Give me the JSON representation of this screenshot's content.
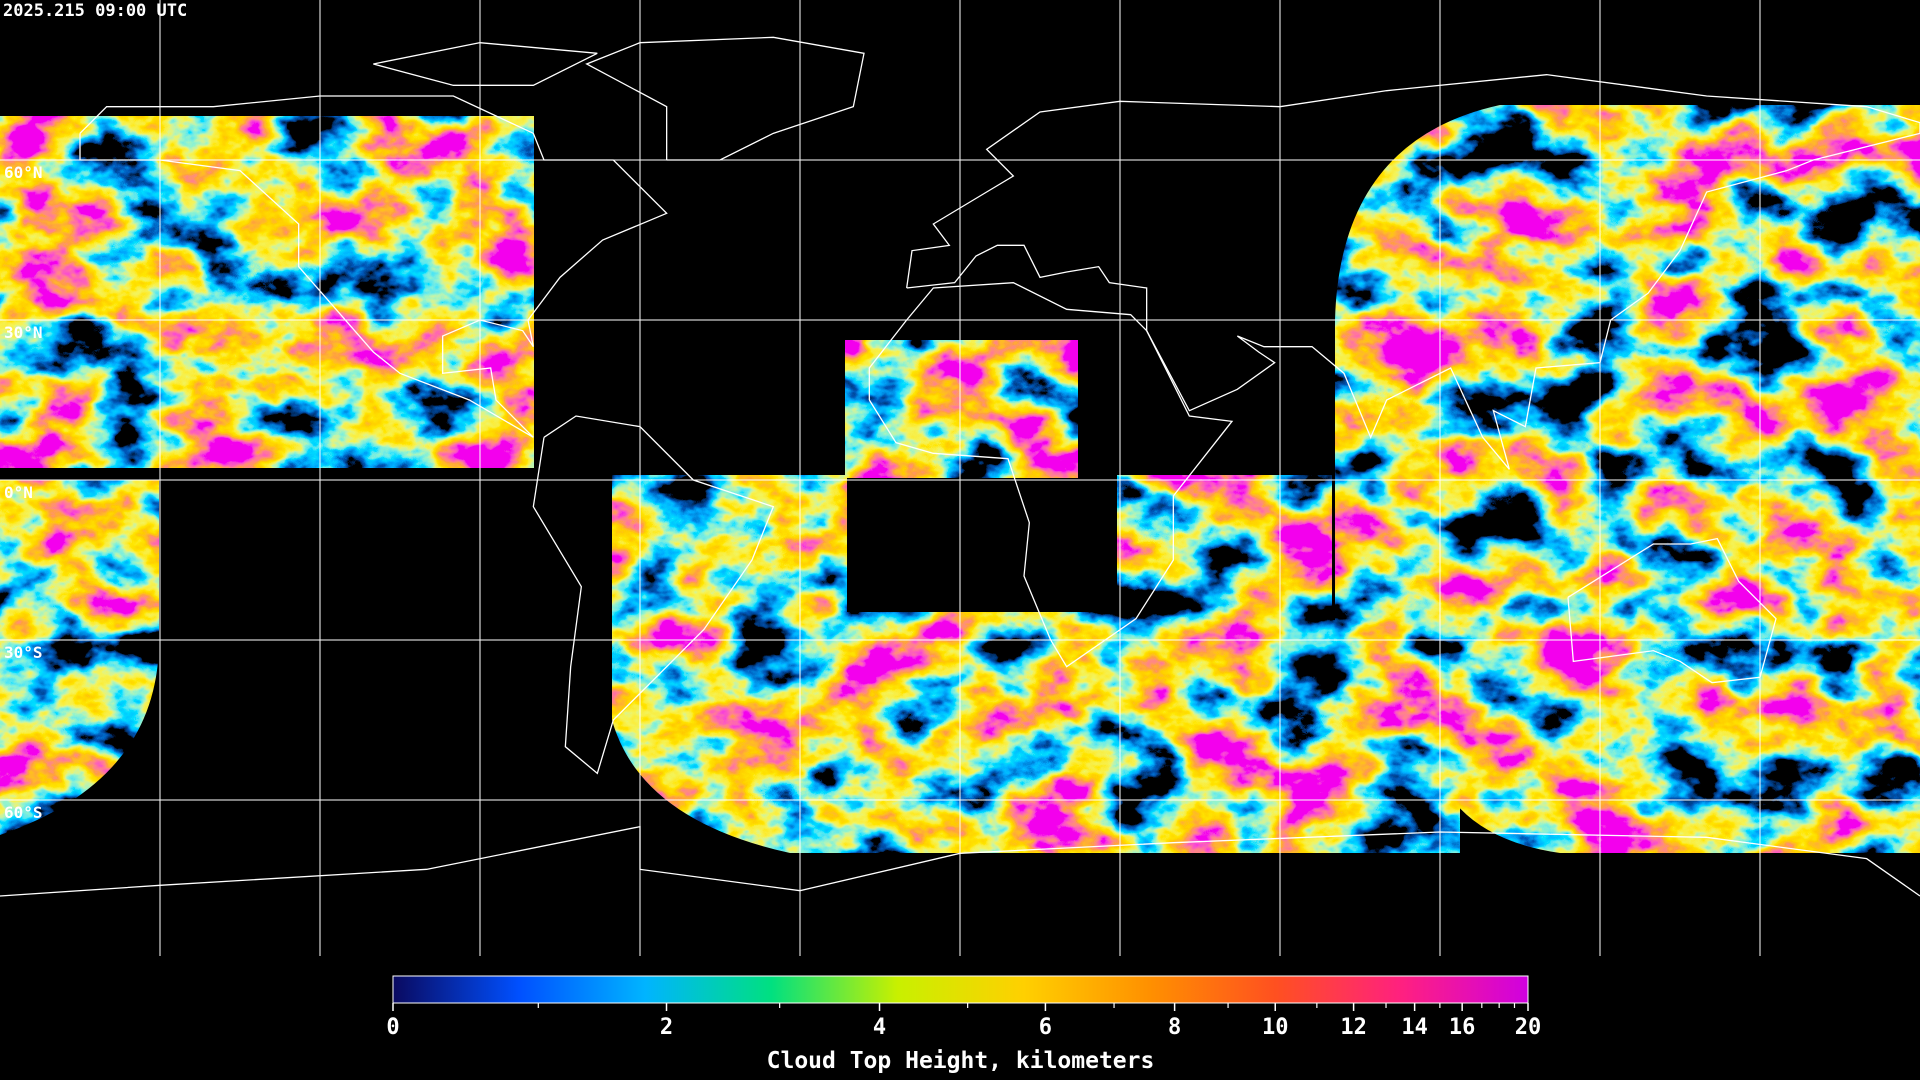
{
  "header": {
    "timestamp": "2025.215 09:00 UTC"
  },
  "map": {
    "latitudes": [
      {
        "value": 60,
        "label": "60°N"
      },
      {
        "value": 30,
        "label": "30°N"
      },
      {
        "value": 0,
        "label": "0°N"
      },
      {
        "value": -30,
        "label": "30°S"
      },
      {
        "value": -60,
        "label": "60°S"
      }
    ]
  },
  "colorbar": {
    "title": "Cloud Top Height, kilometers",
    "clim": [
      0,
      20
    ],
    "ticks": [
      0,
      2,
      4,
      6,
      8,
      10,
      12,
      14,
      16,
      20
    ],
    "minor_ticks": [
      1,
      3,
      5,
      7,
      9,
      11,
      13,
      15,
      17,
      18,
      19
    ],
    "colors": [
      "#0a0a60",
      "#0050ff",
      "#00b4ff",
      "#00e080",
      "#c8f000",
      "#ffd000",
      "#ff9000",
      "#ff5020",
      "#ff2080",
      "#d000e0"
    ]
  }
}
